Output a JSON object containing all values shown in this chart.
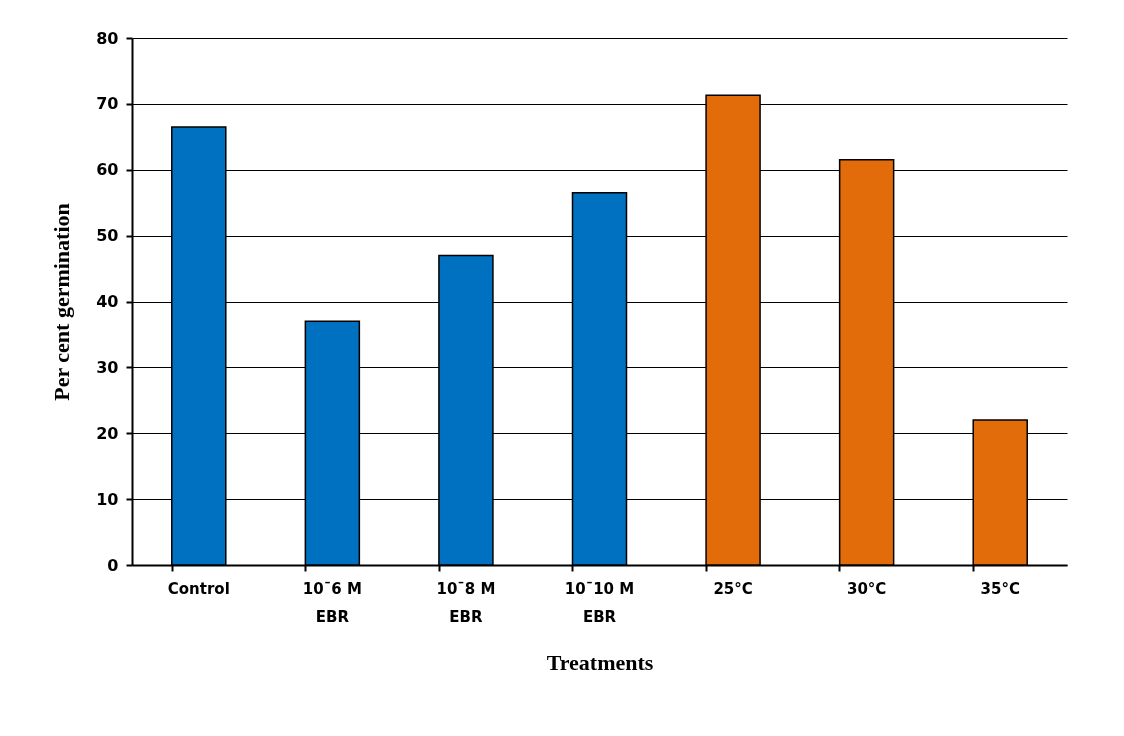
{
  "chart_data": {
    "type": "bar",
    "xlabel": "Treatments",
    "ylabel": "Per cent germination",
    "categories": [
      "Control",
      "10¯6 M EBR",
      "10¯8 M EBR",
      "10¯10 M EBR",
      "25°C",
      "30°C",
      "35°C"
    ],
    "values": [
      66.5,
      37,
      47,
      56.5,
      71.3,
      61.5,
      22
    ],
    "colors": [
      "#0070c0",
      "#0070c0",
      "#0070c0",
      "#0070c0",
      "#e36c0a",
      "#e36c0a",
      "#e36c0a"
    ],
    "ylim": [
      0,
      80
    ],
    "yticks": [
      0,
      10,
      20,
      30,
      40,
      50,
      60,
      70,
      80
    ],
    "grid": "y"
  }
}
